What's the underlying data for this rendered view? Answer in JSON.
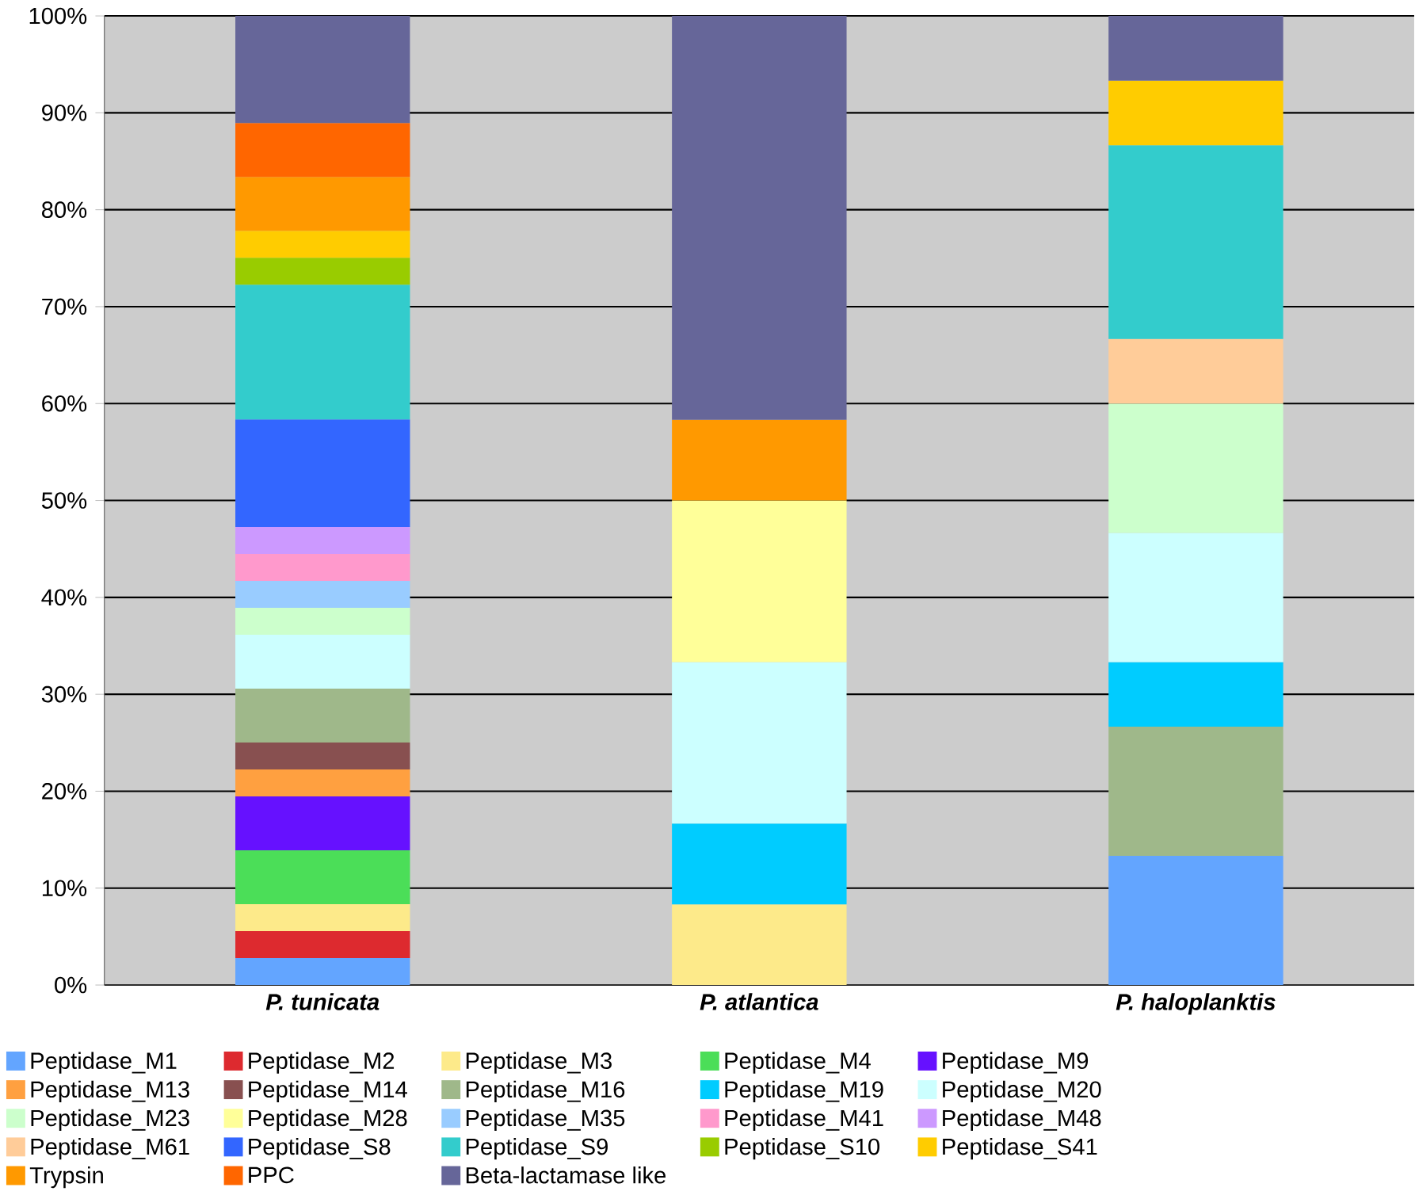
{
  "chart_data": {
    "type": "bar",
    "stacked": true,
    "categories": [
      "P. tunicata",
      "P. atlantica",
      "P. haloplanktis"
    ],
    "ylim": [
      0,
      100
    ],
    "yticks": [
      {
        "value": 0,
        "label": "0%"
      },
      {
        "value": 10,
        "label": "10%"
      },
      {
        "value": 20,
        "label": "20%"
      },
      {
        "value": 30,
        "label": "30%"
      },
      {
        "value": 40,
        "label": "40%"
      },
      {
        "value": 50,
        "label": "50%"
      },
      {
        "value": 60,
        "label": "60%"
      },
      {
        "value": 70,
        "label": "70%"
      },
      {
        "value": 80,
        "label": "80%"
      },
      {
        "value": 90,
        "label": "90%"
      },
      {
        "value": 100,
        "label": "100%"
      }
    ],
    "grid": "y",
    "legend": "bottom",
    "series": [
      {
        "name": "Peptidase_M1",
        "color": "#63a5ff",
        "values": [
          2.78,
          null,
          13.33
        ]
      },
      {
        "name": "Peptidase_M2",
        "color": "#dd2a2f",
        "values": [
          2.78,
          null,
          null
        ]
      },
      {
        "name": "Peptidase_M3",
        "color": "#fdea8a",
        "values": [
          2.78,
          8.33,
          null
        ]
      },
      {
        "name": "Peptidase_M4",
        "color": "#4bde58",
        "values": [
          5.56,
          null,
          null
        ]
      },
      {
        "name": "Peptidase_M9",
        "color": "#6611ff",
        "values": [
          5.56,
          null,
          null
        ]
      },
      {
        "name": "Peptidase_M13",
        "color": "#ffa040",
        "values": [
          2.78,
          null,
          null
        ]
      },
      {
        "name": "Peptidase_M14",
        "color": "#885050",
        "values": [
          2.78,
          null,
          null
        ]
      },
      {
        "name": "Peptidase_M16",
        "color": "#9fb88a",
        "values": [
          5.56,
          null,
          13.33
        ]
      },
      {
        "name": "Peptidase_M19",
        "color": "#00ccff",
        "values": [
          null,
          8.33,
          6.67
        ]
      },
      {
        "name": "Peptidase_M20",
        "color": "#ccffff",
        "values": [
          5.56,
          16.67,
          13.33
        ]
      },
      {
        "name": "Peptidase_M23",
        "color": "#ccffcc",
        "values": [
          2.78,
          null,
          13.33
        ]
      },
      {
        "name": "Peptidase_M28",
        "color": "#ffff99",
        "values": [
          null,
          16.67,
          null
        ]
      },
      {
        "name": "Peptidase_M35",
        "color": "#99ccff",
        "values": [
          2.78,
          null,
          null
        ]
      },
      {
        "name": "Peptidase_M41",
        "color": "#ff99cc",
        "values": [
          2.78,
          null,
          null
        ]
      },
      {
        "name": "Peptidase_M48",
        "color": "#cc99ff",
        "values": [
          2.78,
          null,
          null
        ]
      },
      {
        "name": "Peptidase_M61",
        "color": "#ffcc99",
        "values": [
          null,
          null,
          6.67
        ]
      },
      {
        "name": "Peptidase_S8",
        "color": "#3366ff",
        "values": [
          11.11,
          null,
          null
        ]
      },
      {
        "name": "Peptidase_S9",
        "color": "#33cccc",
        "values": [
          13.89,
          null,
          20
        ]
      },
      {
        "name": "Peptidase_S10",
        "color": "#99cc00",
        "values": [
          2.78,
          null,
          null
        ]
      },
      {
        "name": "Peptidase_S41",
        "color": "#ffcc00",
        "values": [
          2.78,
          null,
          6.67
        ]
      },
      {
        "name": "Trypsin",
        "color": "#ff9900",
        "values": [
          5.56,
          8.33,
          null
        ]
      },
      {
        "name": "PPC",
        "color": "#ff6600",
        "values": [
          5.56,
          null,
          null
        ]
      },
      {
        "name": "Beta-lactamase like",
        "color": "#666699",
        "values": [
          11.06,
          41.67,
          6.67
        ]
      }
    ]
  }
}
